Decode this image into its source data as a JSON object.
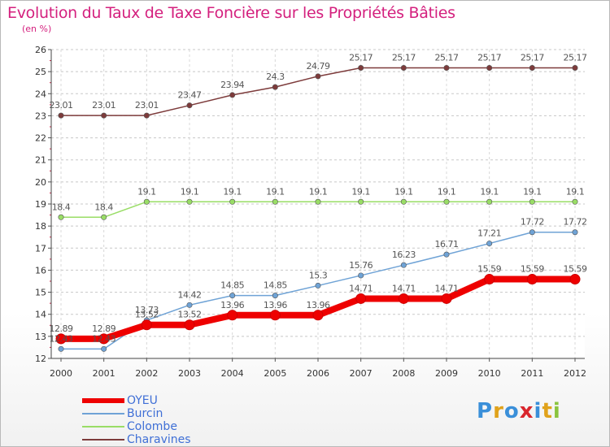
{
  "title": "Evolution du Taux de Taxe Foncière sur les Propriétés Bâties",
  "subtitle": "(en %)",
  "logo": {
    "letters": [
      "P",
      "r",
      "o",
      "x",
      "i",
      "t",
      "i"
    ],
    "colors": [
      "#3a8fd9",
      "#e0a21b",
      "#3a8fd9",
      "#d9262d",
      "#3a8fd9",
      "#e0a21b",
      "#8bc43f"
    ]
  },
  "chart_data": {
    "type": "line",
    "x": [
      "2000",
      "2001",
      "2002",
      "2003",
      "2004",
      "2005",
      "2006",
      "2007",
      "2008",
      "2009",
      "2010",
      "2011",
      "2012"
    ],
    "ylim": [
      12,
      26
    ],
    "yticks": [
      "12",
      "13",
      "14",
      "15",
      "16",
      "17",
      "18",
      "19",
      "20",
      "21",
      "22",
      "23",
      "24",
      "25",
      "26"
    ],
    "series": [
      {
        "name": "OYEU",
        "color": "#ee0000",
        "values": [
          12.89,
          12.89,
          13.52,
          13.52,
          13.96,
          13.96,
          13.96,
          14.71,
          14.71,
          14.71,
          15.59,
          15.59,
          15.59
        ],
        "labels": [
          "12.89",
          "12.89",
          "13.52",
          "13.52",
          "13.96",
          "13.96",
          "13.96",
          "14.71",
          "14.71",
          "14.71",
          "15.59",
          "15.59",
          "15.59"
        ]
      },
      {
        "name": "Burcin",
        "color": "#6fa3d6",
        "values": [
          12.43,
          12.43,
          13.73,
          14.42,
          14.85,
          14.85,
          15.3,
          15.76,
          16.23,
          16.71,
          17.21,
          17.72,
          17.72
        ],
        "labels": [
          "12.43",
          "12.43",
          "13.73",
          "14.42",
          "14.85",
          "14.85",
          "15.3",
          "15.76",
          "16.23",
          "16.71",
          "17.21",
          "17.72",
          "17.72"
        ]
      },
      {
        "name": "Colombe",
        "color": "#99dd66",
        "values": [
          18.4,
          18.4,
          19.1,
          19.1,
          19.1,
          19.1,
          19.1,
          19.1,
          19.1,
          19.1,
          19.1,
          19.1,
          19.1
        ],
        "labels": [
          "18.4",
          "18.4",
          "19.1",
          "19.1",
          "19.1",
          "19.1",
          "19.1",
          "19.1",
          "19.1",
          "19.1",
          "19.1",
          "19.1",
          "19.1"
        ]
      },
      {
        "name": "Charavines",
        "color": "#7d3b3b",
        "values": [
          23.01,
          23.01,
          23.01,
          23.47,
          23.94,
          24.3,
          24.79,
          25.17,
          25.17,
          25.17,
          25.17,
          25.17,
          25.17
        ],
        "labels": [
          "23.01",
          "23.01",
          "23.01",
          "23.47",
          "23.94",
          "24.3",
          "24.79",
          "25.17",
          "25.17",
          "25.17",
          "25.17",
          "25.17",
          "25.17"
        ]
      }
    ]
  }
}
